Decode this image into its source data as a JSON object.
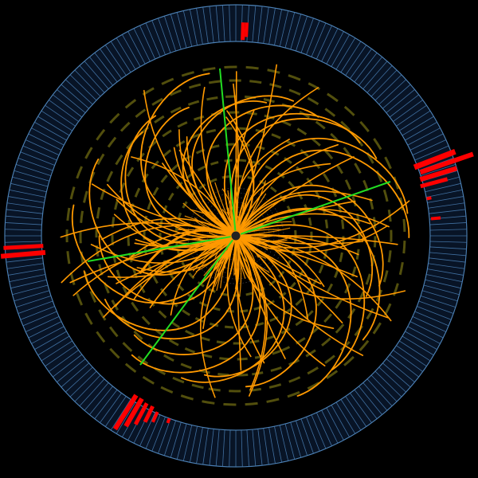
{
  "event": {
    "background_color": "#000000",
    "calorimeter_color": "#4a7fb5",
    "muon_chamber_color": "#6e6a12",
    "track_color": "#ff9900",
    "high_pt_track_color": "#22dd22",
    "energy_deposit_color": "#ff0000",
    "vertex_color": "#222222"
  }
}
